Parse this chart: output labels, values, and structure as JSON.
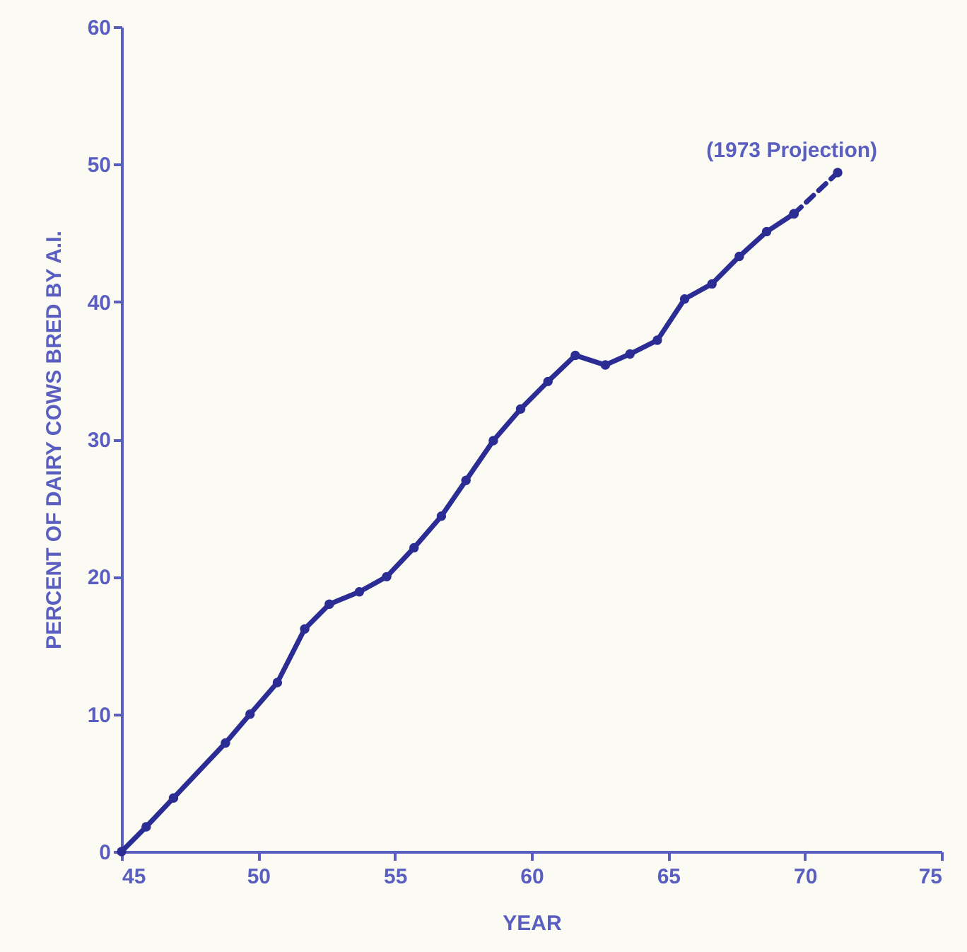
{
  "chart_data": {
    "type": "line",
    "xlabel": "YEAR",
    "ylabel": "PERCENT OF DAIRY COWS BRED BY A.I.",
    "xlim": [
      45,
      75
    ],
    "xticks": [
      45,
      50,
      55,
      60,
      65,
      70,
      75
    ],
    "ylim": [
      0,
      60
    ],
    "yticks": [
      0,
      10,
      20,
      30,
      40,
      50,
      60
    ],
    "grid": false,
    "marker": "circle",
    "series": [
      {
        "color": "#2b2d94",
        "line_style": "solid",
        "x": [
          45,
          45.9,
          46.9,
          48.8,
          49.7,
          50.7,
          51.7,
          52.6,
          53.7,
          54.7,
          55.7,
          56.7,
          57.6,
          58.6,
          59.6,
          60.6,
          61.6,
          62.7,
          63.6,
          64.6,
          65.6,
          66.6,
          67.6,
          68.6,
          69.6
        ],
        "values": [
          0,
          1.8,
          3.9,
          7.9,
          10.0,
          12.3,
          16.2,
          18.0,
          18.9,
          20.0,
          22.1,
          24.4,
          27.0,
          29.9,
          32.2,
          34.2,
          36.1,
          35.4,
          36.2,
          37.2,
          40.2,
          41.3,
          43.3,
          45.1,
          46.4
        ]
      },
      {
        "color": "#2b2d94",
        "line_style": "dashed",
        "x": [
          69.6,
          71.2
        ],
        "values": [
          46.4,
          49.4
        ]
      }
    ],
    "annotations": [
      {
        "text": "(1973 Projection)",
        "x": 71.2,
        "y": 49.4
      }
    ]
  }
}
